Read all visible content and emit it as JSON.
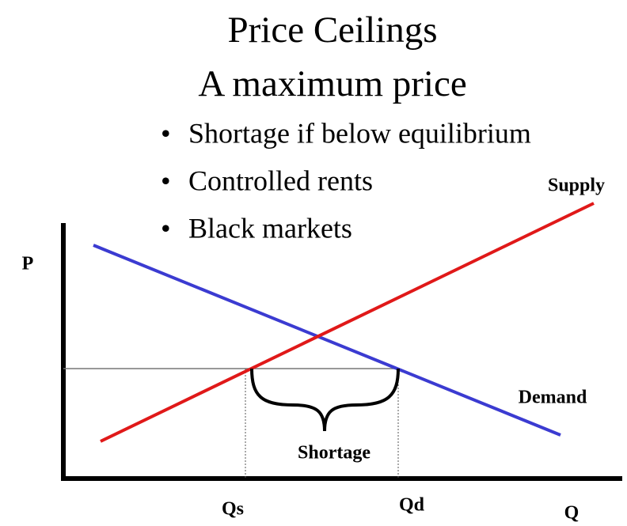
{
  "title": "Price Ceilings",
  "subtitle": "A maximum price",
  "bullets": [
    "Shortage if below equilibrium",
    "Controlled rents",
    "Black markets"
  ],
  "axes": {
    "y_label": "P",
    "x_label": "Q"
  },
  "curves": {
    "supply": "Supply",
    "demand": "Demand"
  },
  "quantities": {
    "qs": "Qs",
    "qd": "Qd"
  },
  "gap_label": "Shortage"
}
